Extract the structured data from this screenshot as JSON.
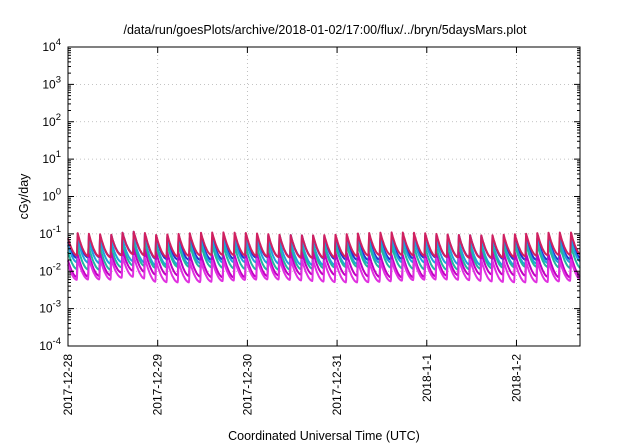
{
  "chart_data": {
    "type": "line",
    "title": "/data/run/goesPlots/archive/2018-01-02/17:00/flux/../bryn/5daysMars.plot",
    "xlabel": "Coordinated Universal Time (UTC)",
    "ylabel": "cGy/day",
    "yscale": "log",
    "ylim": [
      0.0001,
      10000
    ],
    "y_ticks": [
      {
        "value": 0.0001,
        "base": "10",
        "exp": "-4"
      },
      {
        "value": 0.001,
        "base": "10",
        "exp": "-3"
      },
      {
        "value": 0.01,
        "base": "10",
        "exp": "-2"
      },
      {
        "value": 0.1,
        "base": "10",
        "exp": "-1"
      },
      {
        "value": 1,
        "base": "10",
        "exp": "0"
      },
      {
        "value": 10,
        "base": "10",
        "exp": "1"
      },
      {
        "value": 100,
        "base": "10",
        "exp": "2"
      },
      {
        "value": 1000,
        "base": "10",
        "exp": "3"
      },
      {
        "value": 10000,
        "base": "10",
        "exp": "4"
      }
    ],
    "xlim": [
      "2017-12-28 00:00",
      "2018-01-02 17:00"
    ],
    "x_ticks": [
      "2017-12-28",
      "2017-12-29",
      "2017-12-30",
      "2017-12-31",
      "2018-1-1",
      "2018-1-2"
    ],
    "grid": true,
    "sawtooth_period_hours": 3,
    "series": [
      {
        "color": "#2b2bd0",
        "peak": 0.085,
        "trough": 0.022
      },
      {
        "color": "#1fa0e0",
        "peak": 0.065,
        "trough": 0.016
      },
      {
        "color": "#20b8a0",
        "peak": 0.048,
        "trough": 0.012
      },
      {
        "color": "#c000c0",
        "peak": 0.03,
        "trough": 0.0075
      },
      {
        "color": "#e030e0",
        "peak": 0.02,
        "trough": 0.0055
      },
      {
        "color": "#d02060",
        "peak": 0.1,
        "trough": 0.025
      }
    ]
  }
}
